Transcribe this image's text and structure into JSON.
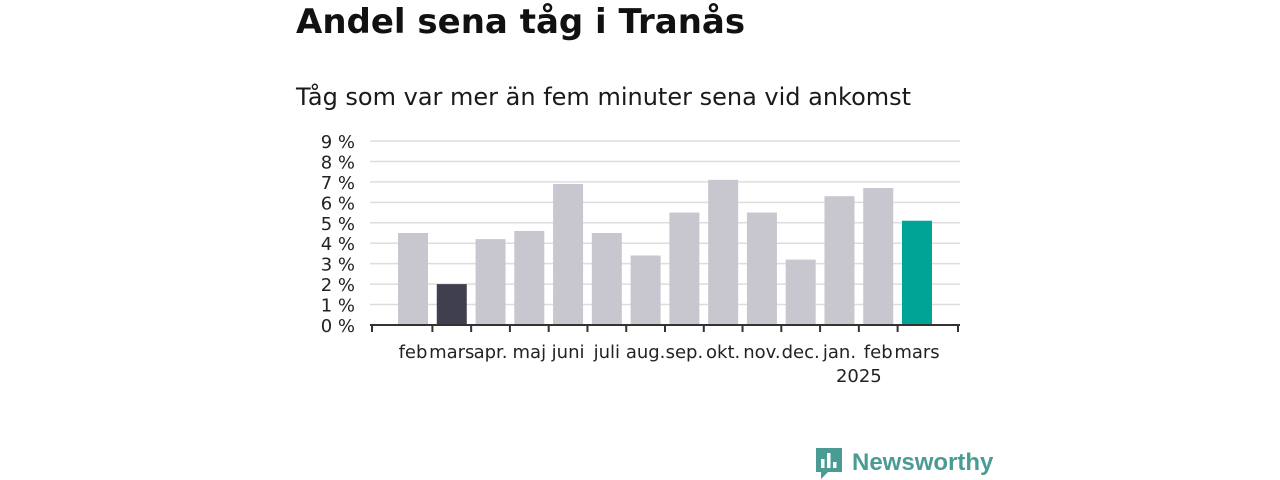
{
  "chart_data": {
    "type": "bar",
    "title": "Andel sena tåg i Tranås",
    "subtitle": "Tåg som var mer än fem minuter sena vid ankomst",
    "categories": [
      "feb",
      "mars",
      "apr.",
      "maj",
      "juni",
      "juli",
      "aug.",
      "sep.",
      "okt.",
      "nov.",
      "dec.",
      "jan.",
      "feb",
      "mars"
    ],
    "year_label": "2025",
    "values": [
      4.5,
      2.0,
      4.2,
      4.6,
      6.9,
      4.5,
      3.4,
      5.5,
      7.1,
      5.5,
      3.2,
      6.3,
      6.7,
      5.1
    ],
    "ylim": [
      0,
      9
    ],
    "yticks": [
      "0 %",
      "1 %",
      "2 %",
      "3 %",
      "4 %",
      "5 %",
      "6 %",
      "7 %",
      "8 %",
      "9 %"
    ],
    "grid": true,
    "colors": {
      "default": "#c8c7cf",
      "highlight_previous": "#403f4e",
      "highlight_current": "#00a497",
      "grid": "#dddddd",
      "axis": "#333333"
    },
    "highlight": {
      "previous_index": 1,
      "current_index": 13
    }
  },
  "branding": {
    "name": "Newsworthy",
    "icon": "newsworthy-logo-icon",
    "color": "#4b9b95"
  }
}
